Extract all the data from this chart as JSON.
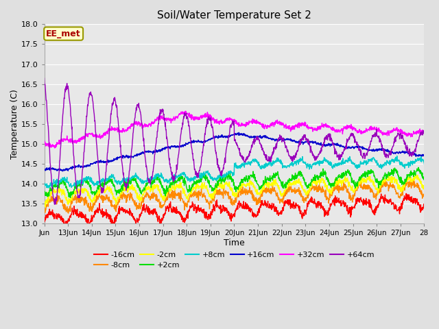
{
  "title": "Soil/Water Temperature Set 2",
  "xlabel": "Time",
  "ylabel": "Temperature (C)",
  "ylim": [
    13.0,
    18.0
  ],
  "yticks": [
    13.0,
    13.5,
    14.0,
    14.5,
    15.0,
    15.5,
    16.0,
    16.5,
    17.0,
    17.5,
    18.0
  ],
  "bg_color": "#e0e0e0",
  "plot_bg_color": "#e8e8e8",
  "grid_color": "#ffffff",
  "annotation_text": "EE_met",
  "annotation_bg": "#ffffcc",
  "annotation_border": "#999900",
  "series": [
    {
      "label": "-16cm",
      "color": "#ff0000"
    },
    {
      "label": "-8cm",
      "color": "#ff8800"
    },
    {
      "label": "-2cm",
      "color": "#ffff00"
    },
    {
      "label": "+2cm",
      "color": "#00dd00"
    },
    {
      "label": "+8cm",
      "color": "#00cccc"
    },
    {
      "label": "+16cm",
      "color": "#0000cc"
    },
    {
      "label": "+32cm",
      "color": "#ff00ff"
    },
    {
      "label": "+64cm",
      "color": "#9900bb"
    }
  ],
  "x_start": 12,
  "x_end": 28,
  "xtick_positions": [
    12,
    13,
    14,
    15,
    16,
    17,
    18,
    19,
    20,
    21,
    22,
    23,
    24,
    25,
    26,
    27,
    28
  ],
  "xtick_labels": [
    "Jun",
    "13Jun",
    "14Jun",
    "15Jun",
    "16Jun",
    "17Jun",
    "18Jun",
    "19Jun",
    "20Jun",
    "21Jun",
    "22Jun",
    "23Jun",
    "24Jun",
    "25Jun",
    "26Jun",
    "27Jun",
    "28"
  ]
}
